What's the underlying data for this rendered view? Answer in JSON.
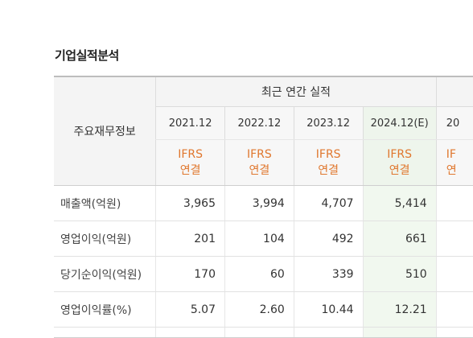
{
  "page": {
    "section_title": "기업실적분석"
  },
  "table": {
    "row_header_label": "주요재무정보",
    "group_label": "최근 연간 실적",
    "periods": [
      "2021.12",
      "2022.12",
      "2023.12",
      "2024.12(E)",
      "20"
    ],
    "standards": [
      {
        "line1": "IFRS",
        "line2": "연결"
      },
      {
        "line1": "IFRS",
        "line2": "연결"
      },
      {
        "line1": "IFRS",
        "line2": "연결"
      },
      {
        "line1": "IFRS",
        "line2": "연결"
      },
      {
        "line1": "IF",
        "line2": "연"
      }
    ],
    "rows": [
      {
        "label": "매출액(억원)",
        "values": [
          "3,965",
          "3,994",
          "4,707",
          "5,414"
        ]
      },
      {
        "label": "영업이익(억원)",
        "values": [
          "201",
          "104",
          "492",
          "661"
        ]
      },
      {
        "label": "당기순이익(억원)",
        "values": [
          "170",
          "60",
          "339",
          "510"
        ]
      },
      {
        "label": "영업이익률(%)",
        "values": [
          "5.07",
          "2.60",
          "10.44",
          "12.21"
        ]
      }
    ],
    "colors": {
      "standard_text": "#e0772e",
      "estimate_bg": "#eef5ec"
    }
  }
}
